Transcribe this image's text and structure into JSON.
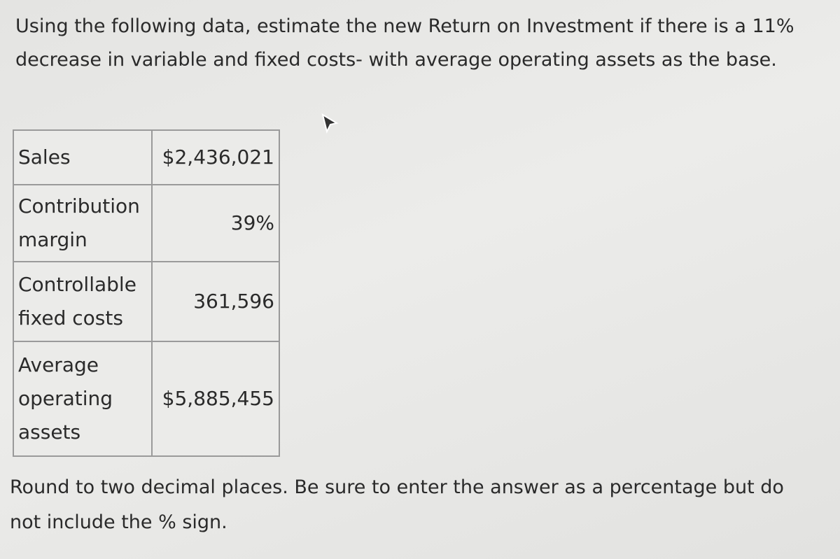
{
  "question": "Using the following data, estimate the new Return on Investment if there is a 11% decrease in variable and fixed costs- with average operating assets as the base.",
  "table": {
    "rows": [
      [
        "Sales",
        "$2,436,021"
      ],
      [
        "Contribution margin",
        "39%"
      ],
      [
        "Controllable fixed costs",
        "361,596"
      ],
      [
        "Average operating assets",
        "$5,885,455"
      ]
    ]
  },
  "instructions": "Round to two decimal places. Be sure to enter the answer as a percentage but do not include the % sign."
}
